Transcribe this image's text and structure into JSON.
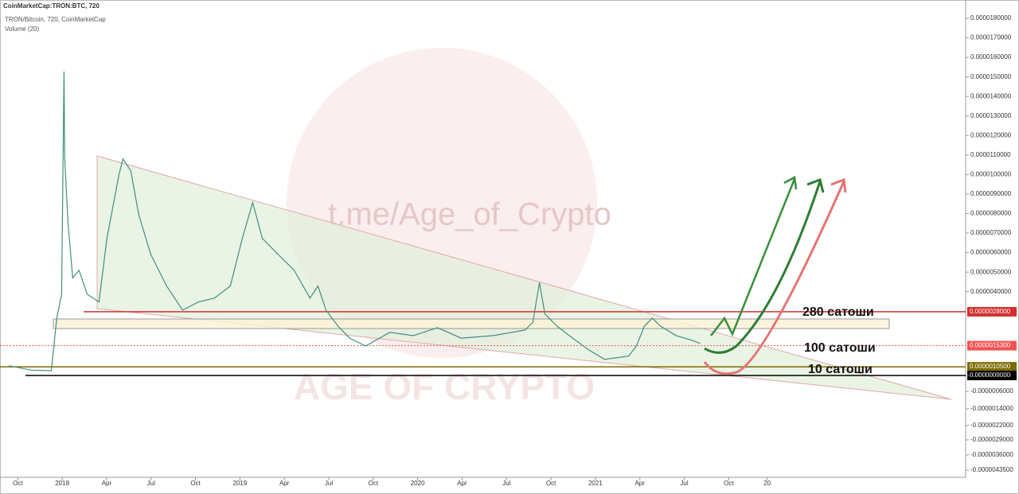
{
  "chart_data": {
    "type": "line",
    "title": "CoinMarketCap:TRON:BTC, 720",
    "subtitle": "TRON/Bitcoin, 720, CoinMarketCap",
    "volume_label": "Volume (20)",
    "watermark": [
      "t.me/Age_of_Crypto",
      "AGE OF CRYPTO"
    ],
    "series": [
      {
        "name": "TRON/Bitcoin",
        "color": "#3f8f7f",
        "x": [
          -0.59,
          0.91,
          2.26,
          2.63,
          2.96,
          3.12,
          3.17,
          3.39,
          3.71,
          4.14,
          4.68,
          5.48,
          6.02,
          6.83,
          7.1,
          7.63,
          8.17,
          8.98,
          10.05,
          11.13,
          12.2,
          13.28,
          14.35,
          15.16,
          15.86,
          16.51,
          17.58,
          18.66,
          19.73,
          20.27,
          20.81,
          21.61,
          22.42,
          23.49,
          25.11,
          26.72,
          28.33,
          29.95,
          32.1,
          34.25,
          34.78,
          35.22,
          35.59,
          36.4,
          37.47,
          38.55,
          39.62,
          41.24,
          41.77,
          42.31,
          42.85,
          43.39,
          44.46,
          45.54,
          46.08
        ],
        "values": [
          1.07e-06,
          9.9e-07,
          9.8e-07,
          2.5e-06,
          3.83e-06,
          1.527e-05,
          1.079e-05,
          7.53e-06,
          4.68e-06,
          5.09e-06,
          3.83e-06,
          3.33e-06,
          6.72e-06,
          9.98e-06,
          1.079e-05,
          1.018e-05,
          7.94e-06,
          5.9e-06,
          4.27e-06,
          2.88e-06,
          3.33e-06,
          3.57e-06,
          4.27e-06,
          6.72e-06,
          8.55e-06,
          6.72e-06,
          5.9e-06,
          5.09e-06,
          3.57e-06,
          4.27e-06,
          2.88e-06,
          2.17e-06,
          1.75e-06,
          1.52e-06,
          1.94e-06,
          1.83e-06,
          2.11e-06,
          1.75e-06,
          1.83e-06,
          2.02e-06,
          2.33e-06,
          4.44e-06,
          2.69e-06,
          2.17e-06,
          1.75e-06,
          1.42e-06,
          1.2e-06,
          1.27e-06,
          1.52e-06,
          2.17e-06,
          2.5e-06,
          2.17e-06,
          1.83e-06,
          1.68e-06,
          1.59e-06
        ]
      }
    ],
    "xlim": [
      -1.2,
      64
    ],
    "xticks": [
      {
        "value": 0,
        "label": "Oct"
      },
      {
        "value": 3,
        "label": "2018"
      },
      {
        "value": 6,
        "label": "Apr"
      },
      {
        "value": 9,
        "label": "Jul"
      },
      {
        "value": 12,
        "label": "Oct"
      },
      {
        "value": 15,
        "label": "2019"
      },
      {
        "value": 18,
        "label": "Apr"
      },
      {
        "value": 21,
        "label": "Jul"
      },
      {
        "value": 24,
        "label": "Oct"
      },
      {
        "value": 27,
        "label": "2020"
      },
      {
        "value": 30,
        "label": "Apr"
      },
      {
        "value": 33,
        "label": "Jul"
      },
      {
        "value": 36,
        "label": "Oct"
      },
      {
        "value": 39,
        "label": "2021"
      },
      {
        "value": 42,
        "label": "Apr"
      },
      {
        "value": 45,
        "label": "Jul"
      },
      {
        "value": 48,
        "label": "Oct"
      },
      {
        "value": 50.6,
        "label": "20"
      }
    ],
    "ylim": [
      1.81e-05,
      -4.45e-06
    ],
    "yticks": [
      {
        "value": 1.8e-05,
        "label": "0.0000180000"
      },
      {
        "value": 1.7e-05,
        "label": "0.0000170000"
      },
      {
        "value": 1.6e-05,
        "label": "0.0000160000"
      },
      {
        "value": 1.5e-05,
        "label": "0.0000150000"
      },
      {
        "value": 1.4e-05,
        "label": "0.0000140000"
      },
      {
        "value": 1.3e-05,
        "label": "0.0000130000"
      },
      {
        "value": 1.2e-05,
        "label": "0.0000120000"
      },
      {
        "value": 1.1e-05,
        "label": "0.0000110000"
      },
      {
        "value": 1e-05,
        "label": "0.0000100000"
      },
      {
        "value": 9e-06,
        "label": "0.0000090000"
      },
      {
        "value": 8e-06,
        "label": "0.0000080000"
      },
      {
        "value": 7e-06,
        "label": "0.0000070000"
      },
      {
        "value": 6e-06,
        "label": "0.0000060000"
      },
      {
        "value": 5e-06,
        "label": "0.0000050000"
      },
      {
        "value": 4e-06,
        "label": "0.0000040000"
      },
      {
        "value": 9e-07,
        "label": "0.0000009000"
      },
      {
        "value": -6e-07,
        "label": "-0.0000006000"
      },
      {
        "value": -1.4e-06,
        "label": "-0.0000014000"
      },
      {
        "value": -2.2e-06,
        "label": "-0.0000022000"
      },
      {
        "value": -2.9e-06,
        "label": "-0.0000029000"
      },
      {
        "value": -3.6e-06,
        "label": "-0.0000036000"
      },
      {
        "value": -4.35e-06,
        "label": "-0.0000043500"
      }
    ],
    "levels": [
      {
        "value": 2.8e-06,
        "label": "0.0000028000",
        "color": "#d32f2f"
      },
      {
        "value": 1.53e-06,
        "label": "0.0000015300",
        "color": "#ef5350"
      },
      {
        "value": 1.05e-06,
        "label": "0.0000010500",
        "color": "#7d6b00"
      },
      {
        "value": 9e-07,
        "label": "0.0000009000",
        "color": "#000000"
      }
    ],
    "annotations": [
      "280 сатоши",
      "100 сатоши",
      "10 сатоши"
    ]
  }
}
